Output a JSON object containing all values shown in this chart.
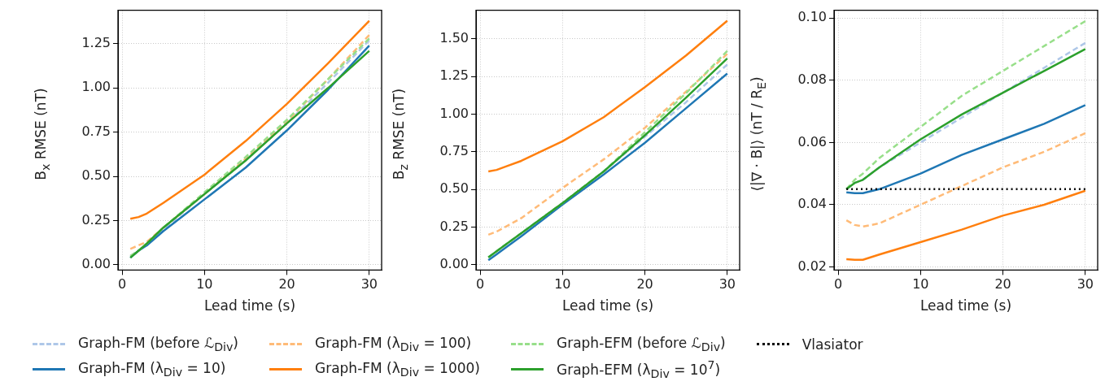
{
  "chart_data": [
    {
      "type": "line",
      "xlabel": "Lead time (s)",
      "ylabel": "B$_{x}$ RMSE (nT)",
      "x": [
        1,
        2,
        3,
        5,
        10,
        15,
        20,
        25,
        30
      ],
      "xlim": [
        -0.5,
        31.5
      ],
      "xticks": [
        0,
        10,
        20,
        30
      ],
      "ylim": [
        -0.03,
        1.44
      ],
      "yticks": [
        {
          "value": 0,
          "label": "0.00"
        },
        {
          "value": 0.25,
          "label": "0.25"
        },
        {
          "value": 0.5,
          "label": "0.50"
        },
        {
          "value": 0.75,
          "label": "0.75"
        },
        {
          "value": 1,
          "label": "1.00"
        },
        {
          "value": 1.25,
          "label": "1.25"
        }
      ],
      "grid": true,
      "legend": false,
      "series": [
        {
          "color": "#aec7e8",
          "line_style": "dashed",
          "values": [
            0.05,
            0.08,
            0.11,
            0.2,
            0.4,
            0.59,
            0.8,
            1.03,
            1.27
          ]
        },
        {
          "color": "#1f77b4",
          "line_style": "solid",
          "values": [
            0.04,
            0.08,
            0.11,
            0.19,
            0.37,
            0.55,
            0.76,
            0.99,
            1.24
          ]
        },
        {
          "color": "#ffbb78",
          "line_style": "dashed",
          "values": [
            0.09,
            0.11,
            0.13,
            0.21,
            0.4,
            0.6,
            0.81,
            1.05,
            1.3
          ]
        },
        {
          "color": "#ff7f0e",
          "line_style": "solid",
          "values": [
            0.26,
            0.27,
            0.29,
            0.35,
            0.51,
            0.7,
            0.91,
            1.14,
            1.38
          ]
        },
        {
          "color": "#98df8a",
          "line_style": "dashed",
          "values": [
            0.05,
            0.08,
            0.12,
            0.21,
            0.41,
            0.61,
            0.82,
            1.05,
            1.28
          ]
        },
        {
          "color": "#2ca02c",
          "line_style": "solid",
          "values": [
            0.04,
            0.08,
            0.12,
            0.21,
            0.4,
            0.59,
            0.8,
            1.0,
            1.21
          ]
        }
      ]
    },
    {
      "type": "line",
      "xlabel": "Lead time (s)",
      "ylabel": "B$_{z}$ RMSE (nT)",
      "x": [
        1,
        2,
        3,
        5,
        10,
        15,
        20,
        25,
        30
      ],
      "xlim": [
        -0.5,
        31.5
      ],
      "xticks": [
        0,
        10,
        20,
        30
      ],
      "ylim": [
        -0.035,
        1.69
      ],
      "yticks": [
        {
          "value": 0,
          "label": "0.00"
        },
        {
          "value": 0.25,
          "label": "0.25"
        },
        {
          "value": 0.5,
          "label": "0.50"
        },
        {
          "value": 0.75,
          "label": "0.75"
        },
        {
          "value": 1,
          "label": "1.00"
        },
        {
          "value": 1.25,
          "label": "1.25"
        },
        {
          "value": 1.5,
          "label": "1.50"
        }
      ],
      "grid": true,
      "legend": false,
      "series": [
        {
          "color": "#aec7e8",
          "line_style": "dashed",
          "values": [
            0.05,
            0.09,
            0.13,
            0.21,
            0.41,
            0.62,
            0.85,
            1.08,
            1.33
          ]
        },
        {
          "color": "#1f77b4",
          "line_style": "solid",
          "values": [
            0.03,
            0.07,
            0.11,
            0.19,
            0.4,
            0.6,
            0.81,
            1.04,
            1.27
          ]
        },
        {
          "color": "#ffbb78",
          "line_style": "dashed",
          "values": [
            0.2,
            0.22,
            0.25,
            0.31,
            0.51,
            0.7,
            0.91,
            1.15,
            1.4
          ]
        },
        {
          "color": "#ff7f0e",
          "line_style": "solid",
          "values": [
            0.62,
            0.63,
            0.65,
            0.69,
            0.82,
            0.98,
            1.18,
            1.39,
            1.62
          ]
        },
        {
          "color": "#98df8a",
          "line_style": "dashed",
          "values": [
            0.05,
            0.09,
            0.13,
            0.21,
            0.41,
            0.62,
            0.88,
            1.14,
            1.42
          ]
        },
        {
          "color": "#2ca02c",
          "line_style": "solid",
          "values": [
            0.05,
            0.09,
            0.13,
            0.21,
            0.41,
            0.62,
            0.86,
            1.11,
            1.37
          ]
        }
      ]
    },
    {
      "type": "line",
      "xlabel": "Lead time (s)",
      "ylabel": "⟨|∇ · B|⟩ (nT / R$_{E}$)",
      "x": [
        1,
        2,
        3,
        5,
        10,
        15,
        20,
        25,
        30
      ],
      "xlim": [
        -0.5,
        31.5
      ],
      "xticks": [
        0,
        10,
        20,
        30
      ],
      "ylim": [
        0.019,
        0.1025
      ],
      "yticks": [
        {
          "value": 0.02,
          "label": "0.02"
        },
        {
          "value": 0.04,
          "label": "0.04"
        },
        {
          "value": 0.06,
          "label": "0.06"
        },
        {
          "value": 0.08,
          "label": "0.08"
        },
        {
          "value": 0.1,
          "label": "0.10"
        }
      ],
      "grid": true,
      "legend": "bottom",
      "series": [
        {
          "name": "Graph-FM (before ℒ$_{Div}$)",
          "color": "#aec7e8",
          "line_style": "dashed",
          "values": [
            0.045,
            0.047,
            0.048,
            0.052,
            0.06,
            0.068,
            0.076,
            0.084,
            0.092
          ]
        },
        {
          "name": "Graph-FM (λ$_{Div}$ = 10)",
          "color": "#1f77b4",
          "line_style": "solid",
          "values": [
            0.044,
            0.0437,
            0.0437,
            0.045,
            0.05,
            0.056,
            0.061,
            0.066,
            0.072
          ]
        },
        {
          "name": "Graph-FM (λ$_{Div}$ = 100)",
          "color": "#ffbb78",
          "line_style": "dashed",
          "values": [
            0.035,
            0.0335,
            0.033,
            0.034,
            0.04,
            0.046,
            0.052,
            0.057,
            0.063
          ]
        },
        {
          "name": "Graph-FM (λ$_{Div}$ = 1000)",
          "color": "#ff7f0e",
          "line_style": "solid",
          "values": [
            0.0225,
            0.0223,
            0.0223,
            0.024,
            0.028,
            0.032,
            0.0365,
            0.04,
            0.0445
          ]
        },
        {
          "name": "Graph-EFM (before ℒ$_{Div}$)",
          "color": "#98df8a",
          "line_style": "dashed",
          "values": [
            0.045,
            0.048,
            0.05,
            0.055,
            0.065,
            0.075,
            0.083,
            0.091,
            0.099
          ]
        },
        {
          "name": "Graph-EFM (λ$_{Div}$ = 10$^{7}$)",
          "color": "#2ca02c",
          "line_style": "solid",
          "values": [
            0.045,
            0.047,
            0.048,
            0.052,
            0.061,
            0.069,
            0.076,
            0.083,
            0.09
          ]
        },
        {
          "name": "Vlasiator",
          "color": "#000000",
          "line_style": "dotted",
          "x": [
            1,
            30
          ],
          "values": [
            0.045,
            0.045
          ]
        }
      ]
    }
  ]
}
